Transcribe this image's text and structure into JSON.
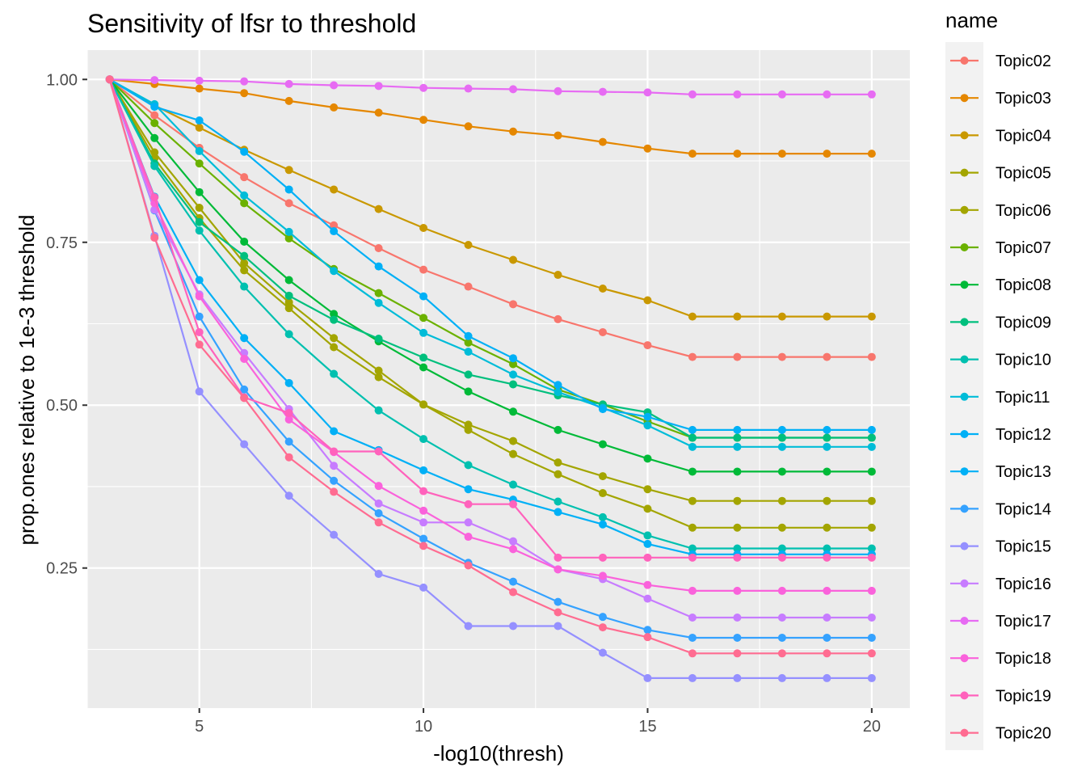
{
  "chart_data": {
    "type": "line",
    "title": "Sensitivity of lfsr to threshold",
    "xlabel": "-log10(thresh)",
    "ylabel": "prop.ones relative to 1e-3 threshold",
    "xlim": [
      2.5,
      20.85
    ],
    "ylim": [
      0.035,
      1.045
    ],
    "x_ticks": [
      5,
      10,
      15,
      20
    ],
    "y_ticks": [
      0.25,
      0.5,
      0.75,
      1.0
    ],
    "y_tick_labels": [
      "0.25",
      "0.50",
      "0.75",
      "1.00"
    ],
    "grid": true,
    "legend_title": "name",
    "legend_position": "right",
    "x": [
      3,
      4,
      5,
      6,
      7,
      8,
      9,
      10,
      11,
      12,
      13,
      14,
      15,
      16,
      17,
      18,
      19,
      20
    ],
    "series": [
      {
        "name": "Topic02",
        "color": "#F8766D",
        "values": [
          1.0,
          0.945,
          0.895,
          0.85,
          0.81,
          0.776,
          0.741,
          0.708,
          0.682,
          0.655,
          0.632,
          0.612,
          0.592,
          0.574,
          0.574,
          0.574,
          0.574,
          0.574
        ]
      },
      {
        "name": "Topic03",
        "color": "#E58700",
        "values": [
          1.0,
          0.993,
          0.986,
          0.979,
          0.967,
          0.957,
          0.949,
          0.938,
          0.928,
          0.92,
          0.914,
          0.904,
          0.894,
          0.886,
          0.886,
          0.886,
          0.886,
          0.886
        ]
      },
      {
        "name": "Topic04",
        "color": "#C99800",
        "values": [
          1.0,
          0.96,
          0.926,
          0.892,
          0.861,
          0.831,
          0.801,
          0.772,
          0.746,
          0.723,
          0.7,
          0.679,
          0.661,
          0.636,
          0.636,
          0.636,
          0.636,
          0.636
        ]
      },
      {
        "name": "Topic05",
        "color": "#A3A500",
        "values": [
          1.0,
          0.888,
          0.803,
          0.718,
          0.658,
          0.603,
          0.553,
          0.501,
          0.462,
          0.425,
          0.394,
          0.365,
          0.341,
          0.312,
          0.312,
          0.312,
          0.312,
          0.312
        ]
      },
      {
        "name": "Topic06",
        "color": "#A3A500",
        "values": [
          1.0,
          0.879,
          0.787,
          0.707,
          0.649,
          0.589,
          0.543,
          0.501,
          0.47,
          0.445,
          0.412,
          0.391,
          0.371,
          0.353,
          0.353,
          0.353,
          0.353,
          0.353
        ]
      },
      {
        "name": "Topic07",
        "color": "#6BB100",
        "values": [
          1.0,
          0.933,
          0.871,
          0.81,
          0.756,
          0.709,
          0.672,
          0.634,
          0.596,
          0.563,
          0.524,
          0.501,
          0.475,
          0.45,
          0.45,
          0.45,
          0.45,
          0.45
        ]
      },
      {
        "name": "Topic08",
        "color": "#00BA38",
        "values": [
          1.0,
          0.91,
          0.827,
          0.751,
          0.692,
          0.64,
          0.598,
          0.558,
          0.521,
          0.49,
          0.462,
          0.44,
          0.418,
          0.398,
          0.398,
          0.398,
          0.398,
          0.398
        ]
      },
      {
        "name": "Topic09",
        "color": "#00BF7D",
        "values": [
          1.0,
          0.871,
          0.781,
          0.729,
          0.668,
          0.631,
          0.602,
          0.573,
          0.547,
          0.532,
          0.515,
          0.501,
          0.489,
          0.45,
          0.45,
          0.45,
          0.45,
          0.45
        ]
      },
      {
        "name": "Topic10",
        "color": "#00C0AF",
        "values": [
          1.0,
          0.867,
          0.768,
          0.682,
          0.609,
          0.548,
          0.492,
          0.448,
          0.408,
          0.378,
          0.352,
          0.328,
          0.3,
          0.28,
          0.28,
          0.28,
          0.28,
          0.28
        ]
      },
      {
        "name": "Topic11",
        "color": "#00BCD8",
        "values": [
          1.0,
          0.962,
          0.89,
          0.822,
          0.766,
          0.706,
          0.657,
          0.611,
          0.582,
          0.547,
          0.52,
          0.496,
          0.469,
          0.436,
          0.436,
          0.436,
          0.436,
          0.436
        ]
      },
      {
        "name": "Topic12",
        "color": "#00B0F6",
        "values": [
          1.0,
          0.958,
          0.937,
          0.889,
          0.831,
          0.767,
          0.713,
          0.667,
          0.606,
          0.572,
          0.531,
          0.494,
          0.482,
          0.462,
          0.462,
          0.462,
          0.462,
          0.462
        ]
      },
      {
        "name": "Topic13",
        "color": "#00B0F6",
        "values": [
          1.0,
          0.82,
          0.692,
          0.603,
          0.534,
          0.46,
          0.431,
          0.4,
          0.371,
          0.355,
          0.336,
          0.317,
          0.287,
          0.271,
          0.271,
          0.271,
          0.271,
          0.271
        ]
      },
      {
        "name": "Topic14",
        "color": "#35A2FF",
        "values": [
          1.0,
          0.799,
          0.636,
          0.524,
          0.444,
          0.384,
          0.334,
          0.295,
          0.258,
          0.229,
          0.198,
          0.175,
          0.155,
          0.143,
          0.143,
          0.143,
          0.143,
          0.143
        ]
      },
      {
        "name": "Topic15",
        "color": "#9590FF",
        "values": [
          1.0,
          0.76,
          0.521,
          0.44,
          0.361,
          0.301,
          0.241,
          0.22,
          0.161,
          0.161,
          0.161,
          0.12,
          0.081,
          0.081,
          0.081,
          0.081,
          0.081,
          0.081
        ]
      },
      {
        "name": "Topic16",
        "color": "#C77CFF",
        "values": [
          1.0,
          0.8,
          0.67,
          0.58,
          0.494,
          0.407,
          0.349,
          0.32,
          0.32,
          0.291,
          0.248,
          0.233,
          0.203,
          0.174,
          0.174,
          0.174,
          0.174,
          0.174
        ]
      },
      {
        "name": "Topic17",
        "color": "#E76BF3",
        "values": [
          1.0,
          0.999,
          0.998,
          0.997,
          0.993,
          0.991,
          0.99,
          0.987,
          0.986,
          0.985,
          0.982,
          0.981,
          0.98,
          0.977,
          0.977,
          0.977,
          0.977,
          0.977
        ]
      },
      {
        "name": "Topic18",
        "color": "#FA62DB",
        "values": [
          1.0,
          0.81,
          0.667,
          0.571,
          0.478,
          0.428,
          0.376,
          0.338,
          0.298,
          0.279,
          0.248,
          0.238,
          0.224,
          0.215,
          0.215,
          0.215,
          0.215,
          0.215
        ]
      },
      {
        "name": "Topic19",
        "color": "#FF62BC",
        "values": [
          1.0,
          0.819,
          0.612,
          0.512,
          0.488,
          0.429,
          0.429,
          0.368,
          0.348,
          0.348,
          0.266,
          0.266,
          0.266,
          0.266,
          0.266,
          0.266,
          0.266,
          0.266
        ]
      },
      {
        "name": "Topic20",
        "color": "#FF6C91",
        "values": [
          1.0,
          0.757,
          0.593,
          0.511,
          0.42,
          0.367,
          0.32,
          0.284,
          0.254,
          0.213,
          0.182,
          0.159,
          0.144,
          0.119,
          0.119,
          0.119,
          0.119,
          0.119
        ]
      }
    ]
  }
}
